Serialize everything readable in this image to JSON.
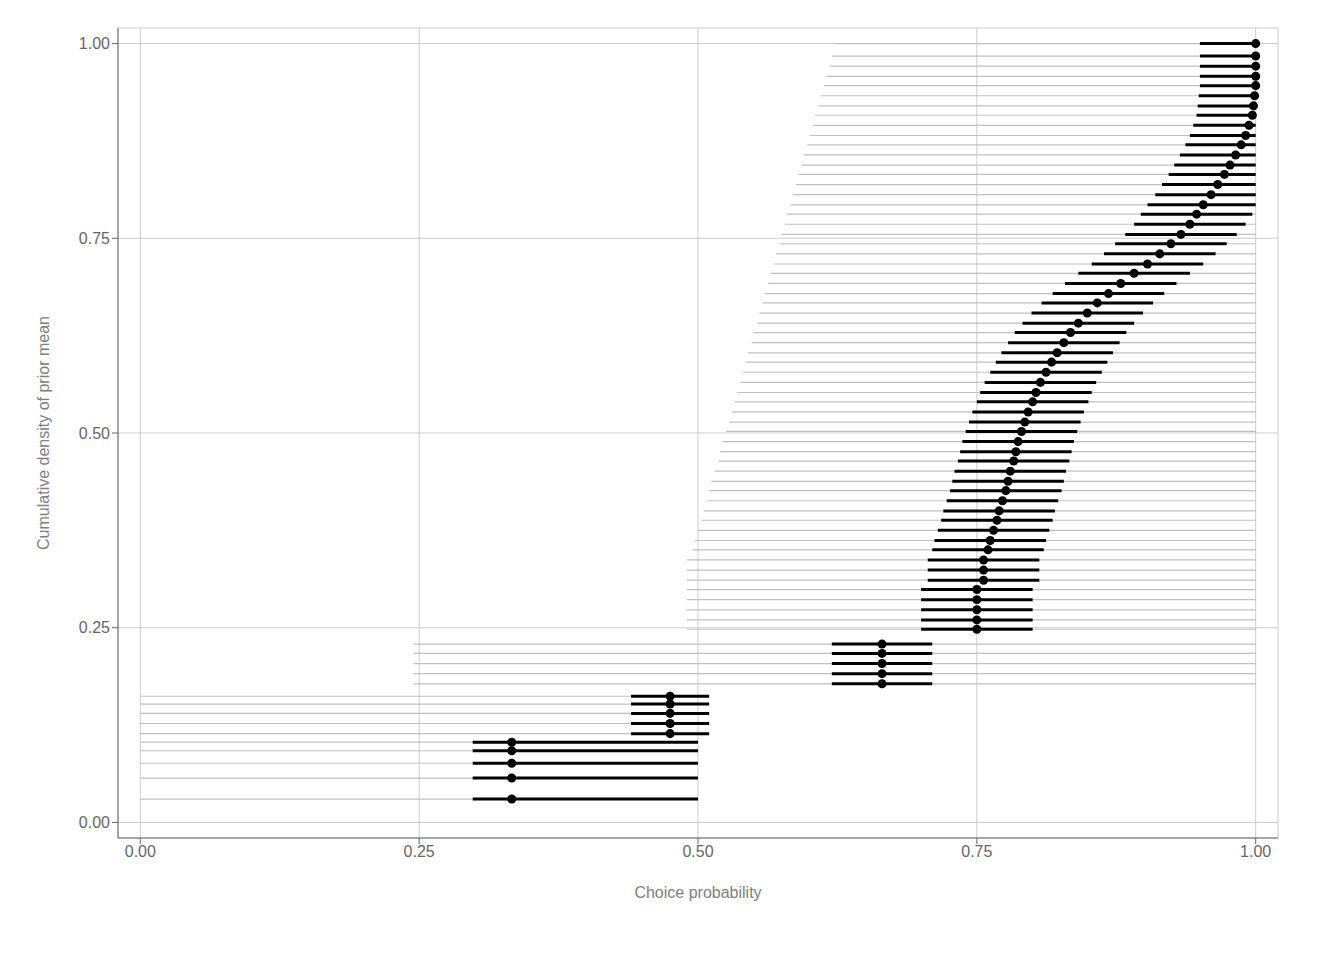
{
  "chart_data": {
    "type": "scatter",
    "xlabel": "Choice probability",
    "ylabel": "Cumulative density of prior mean",
    "xlim": [
      -0.02,
      1.02
    ],
    "ylim": [
      -0.02,
      1.02
    ],
    "xticks": [
      {
        "value": 0.0,
        "label": "0.00"
      },
      {
        "value": 0.25,
        "label": "0.25"
      },
      {
        "value": 0.5,
        "label": "0.50"
      },
      {
        "value": 0.75,
        "label": "0.75"
      },
      {
        "value": 1.0,
        "label": "1.00"
      }
    ],
    "yticks": [
      {
        "value": 0.0,
        "label": "0.00"
      },
      {
        "value": 0.25,
        "label": "0.25"
      },
      {
        "value": 0.5,
        "label": "0.50"
      },
      {
        "value": 0.75,
        "label": "0.75"
      },
      {
        "value": 1.0,
        "label": "1.00"
      }
    ],
    "grid": true,
    "color": "#000000",
    "x": [
      0.333,
      0.333,
      0.333,
      0.333,
      0.333,
      0.475,
      0.475,
      0.475,
      0.475,
      0.475,
      0.665,
      0.665,
      0.665,
      0.665,
      0.665,
      0.75,
      0.75,
      0.75,
      0.75,
      0.75,
      0.756,
      0.756,
      0.756,
      0.76,
      0.762,
      0.765,
      0.768,
      0.77,
      0.773,
      0.776,
      0.778,
      0.78,
      0.783,
      0.785,
      0.787,
      0.79,
      0.793,
      0.796,
      0.8,
      0.803,
      0.807,
      0.812,
      0.817,
      0.822,
      0.828,
      0.834,
      0.841,
      0.849,
      0.858,
      0.868,
      0.879,
      0.891,
      0.903,
      0.914,
      0.924,
      0.933,
      0.941,
      0.947,
      0.953,
      0.96,
      0.966,
      0.972,
      0.977,
      0.982,
      0.987,
      0.991,
      0.994,
      0.997,
      0.998,
      0.999,
      1.0,
      1.0,
      1.0,
      1.0,
      1.0
    ],
    "values": [
      0.03,
      0.057,
      0.076,
      0.092,
      0.103,
      0.114,
      0.127,
      0.14,
      0.152,
      0.162,
      0.178,
      0.191,
      0.204,
      0.217,
      0.229,
      0.248,
      0.26,
      0.273,
      0.286,
      0.299,
      0.311,
      0.324,
      0.337,
      0.35,
      0.362,
      0.375,
      0.388,
      0.4,
      0.413,
      0.426,
      0.438,
      0.451,
      0.464,
      0.476,
      0.489,
      0.502,
      0.514,
      0.527,
      0.54,
      0.552,
      0.565,
      0.578,
      0.591,
      0.603,
      0.616,
      0.629,
      0.641,
      0.654,
      0.667,
      0.679,
      0.692,
      0.705,
      0.717,
      0.73,
      0.743,
      0.755,
      0.768,
      0.781,
      0.793,
      0.806,
      0.819,
      0.832,
      0.844,
      0.857,
      0.87,
      0.882,
      0.895,
      0.908,
      0.92,
      0.933,
      0.946,
      0.958,
      0.971,
      0.984,
      1.0
    ],
    "ci95": {
      "color": "#c0c0c0",
      "lo": [
        0.0,
        0.0,
        0.0,
        0.0,
        0.0,
        0.0,
        0.0,
        0.0,
        0.0,
        0.0,
        0.245,
        0.245,
        0.245,
        0.245,
        0.245,
        0.49,
        0.49,
        0.49,
        0.49,
        0.49,
        0.49,
        0.49,
        0.49,
        0.495,
        0.497,
        0.5,
        0.503,
        0.505,
        0.508,
        0.51,
        0.512,
        0.515,
        0.518,
        0.52,
        0.522,
        0.525,
        0.528,
        0.53,
        0.533,
        0.535,
        0.538,
        0.54,
        0.543,
        0.545,
        0.548,
        0.55,
        0.553,
        0.555,
        0.558,
        0.56,
        0.563,
        0.565,
        0.568,
        0.57,
        0.573,
        0.575,
        0.578,
        0.58,
        0.583,
        0.585,
        0.588,
        0.59,
        0.593,
        0.595,
        0.598,
        0.6,
        0.603,
        0.605,
        0.608,
        0.61,
        0.613,
        0.615,
        0.618,
        0.62,
        0.622
      ],
      "hi": [
        0.5,
        0.5,
        0.5,
        0.5,
        0.5,
        0.5,
        0.5,
        0.5,
        0.5,
        0.5,
        1.0,
        1.0,
        1.0,
        1.0,
        1.0,
        1.0,
        1.0,
        1.0,
        1.0,
        1.0,
        1.0,
        1.0,
        1.0,
        1.0,
        1.0,
        1.0,
        1.0,
        1.0,
        1.0,
        1.0,
        1.0,
        1.0,
        1.0,
        1.0,
        1.0,
        1.0,
        1.0,
        1.0,
        1.0,
        1.0,
        1.0,
        1.0,
        1.0,
        1.0,
        1.0,
        1.0,
        1.0,
        1.0,
        1.0,
        1.0,
        1.0,
        1.0,
        1.0,
        1.0,
        1.0,
        1.0,
        1.0,
        1.0,
        1.0,
        1.0,
        1.0,
        1.0,
        1.0,
        1.0,
        1.0,
        1.0,
        1.0,
        1.0,
        1.0,
        1.0,
        1.0,
        1.0,
        1.0,
        1.0,
        1.0
      ]
    },
    "ci50": {
      "color": "#000000",
      "lo": [
        0.298,
        0.298,
        0.298,
        0.298,
        0.298,
        0.44,
        0.44,
        0.44,
        0.44,
        0.44,
        0.62,
        0.62,
        0.62,
        0.62,
        0.62,
        0.7,
        0.7,
        0.7,
        0.7,
        0.7,
        0.706,
        0.706,
        0.706,
        0.71,
        0.712,
        0.715,
        0.718,
        0.72,
        0.723,
        0.726,
        0.728,
        0.73,
        0.733,
        0.735,
        0.737,
        0.74,
        0.743,
        0.746,
        0.75,
        0.753,
        0.757,
        0.762,
        0.767,
        0.772,
        0.778,
        0.784,
        0.791,
        0.799,
        0.808,
        0.818,
        0.829,
        0.841,
        0.853,
        0.864,
        0.874,
        0.883,
        0.891,
        0.897,
        0.903,
        0.91,
        0.916,
        0.922,
        0.927,
        0.932,
        0.937,
        0.941,
        0.944,
        0.947,
        0.948,
        0.949,
        0.95,
        0.95,
        0.95,
        0.95,
        0.95
      ],
      "hi": [
        0.5,
        0.5,
        0.5,
        0.5,
        0.5,
        0.51,
        0.51,
        0.51,
        0.51,
        0.51,
        0.71,
        0.71,
        0.71,
        0.71,
        0.71,
        0.8,
        0.8,
        0.8,
        0.8,
        0.8,
        0.806,
        0.806,
        0.806,
        0.81,
        0.812,
        0.815,
        0.818,
        0.82,
        0.823,
        0.826,
        0.828,
        0.83,
        0.833,
        0.835,
        0.837,
        0.84,
        0.843,
        0.846,
        0.85,
        0.853,
        0.857,
        0.862,
        0.867,
        0.872,
        0.878,
        0.884,
        0.891,
        0.899,
        0.908,
        0.918,
        0.929,
        0.941,
        0.953,
        0.964,
        0.974,
        0.983,
        0.991,
        0.997,
        1.0,
        1.0,
        1.0,
        1.0,
        1.0,
        1.0,
        1.0,
        1.0,
        1.0,
        1.0,
        1.0,
        1.0,
        1.0,
        1.0,
        1.0,
        1.0,
        1.0
      ]
    }
  }
}
